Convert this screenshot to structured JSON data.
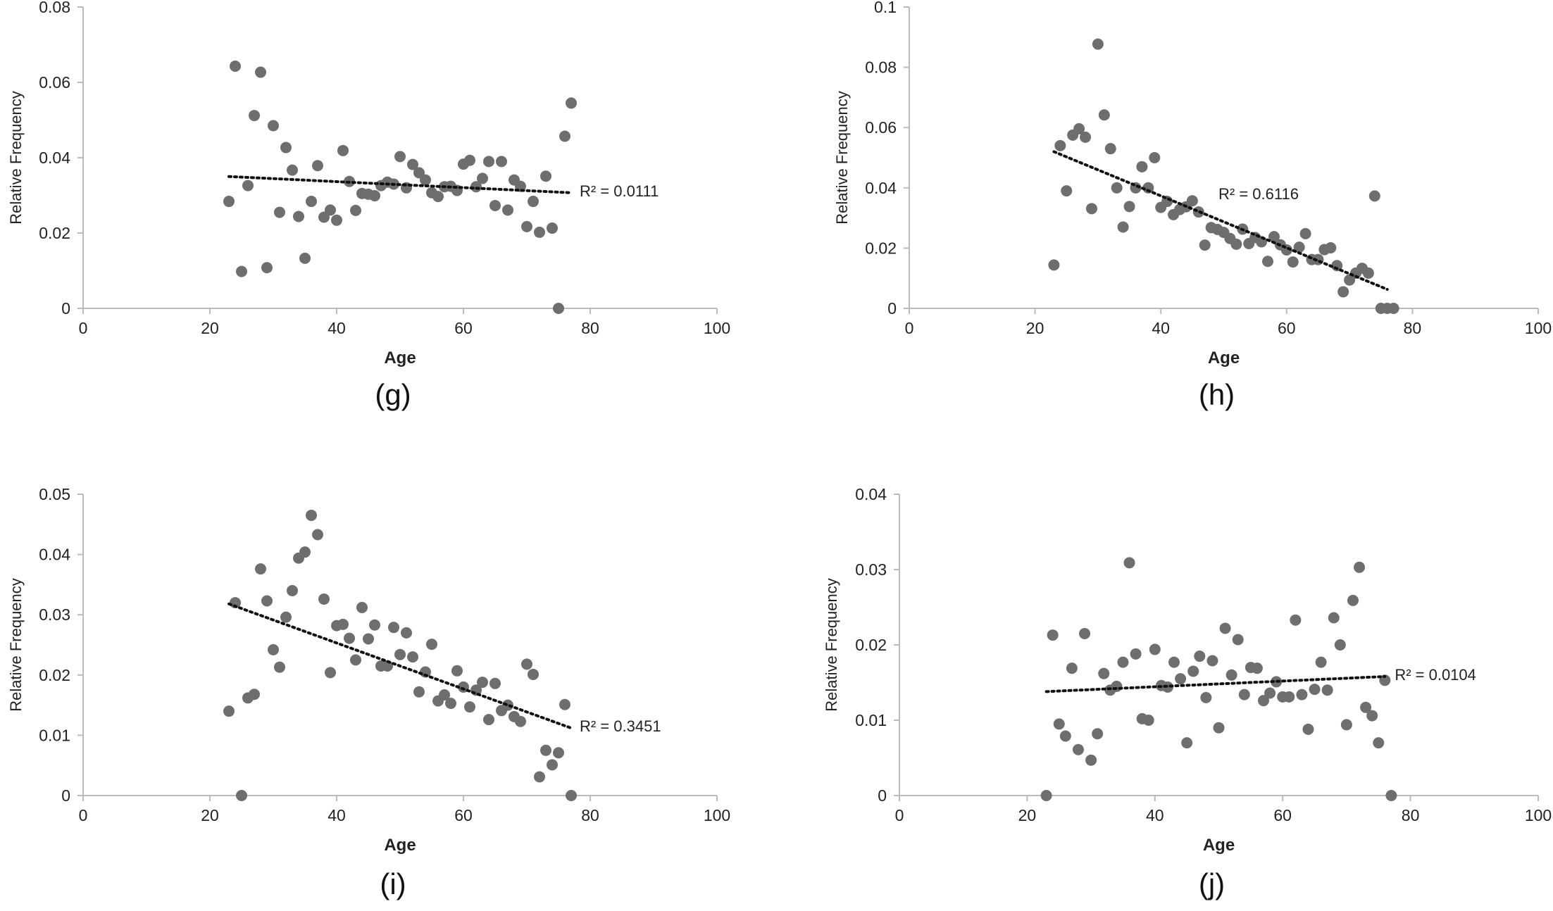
{
  "chart_data": [
    {
      "type": "scatter",
      "panel_label": "(g)",
      "xlabel": "Age",
      "ylabel": "Relative Frequency",
      "xlim": [
        0,
        100
      ],
      "ylim": [
        0,
        0.08
      ],
      "x_ticks": [
        "0",
        "20",
        "40",
        "60",
        "80",
        "100"
      ],
      "y_ticks": [
        "0",
        "0.02",
        "0.04",
        "0.06",
        "0.08"
      ],
      "trendline": {
        "style": "dotted",
        "linear": true,
        "x_start": 23,
        "y_start": 0.035,
        "x_end": 77,
        "y_end": 0.0307
      },
      "annotation": "R² = 0.0111",
      "points": [
        [
          23,
          0.0284
        ],
        [
          24,
          0.0643
        ],
        [
          25,
          0.0098
        ],
        [
          26,
          0.0326
        ],
        [
          27,
          0.0512
        ],
        [
          28,
          0.0627
        ],
        [
          29,
          0.0108
        ],
        [
          30,
          0.0485
        ],
        [
          31,
          0.0255
        ],
        [
          32,
          0.0427
        ],
        [
          33,
          0.0367
        ],
        [
          34,
          0.0244
        ],
        [
          35,
          0.0133
        ],
        [
          36,
          0.0284
        ],
        [
          37,
          0.0379
        ],
        [
          38,
          0.0242
        ],
        [
          39,
          0.0261
        ],
        [
          40,
          0.0234
        ],
        [
          41,
          0.0419
        ],
        [
          42,
          0.0337
        ],
        [
          43,
          0.026
        ],
        [
          44,
          0.0305
        ],
        [
          45,
          0.0303
        ],
        [
          46,
          0.0299
        ],
        [
          47,
          0.0326
        ],
        [
          48,
          0.0335
        ],
        [
          49,
          0.033
        ],
        [
          50,
          0.0403
        ],
        [
          51,
          0.032
        ],
        [
          52,
          0.0382
        ],
        [
          53,
          0.036
        ],
        [
          54,
          0.0341
        ],
        [
          55,
          0.0307
        ],
        [
          56,
          0.0297
        ],
        [
          57,
          0.0323
        ],
        [
          58,
          0.0324
        ],
        [
          59,
          0.0313
        ],
        [
          60,
          0.0383
        ],
        [
          61,
          0.0393
        ],
        [
          62,
          0.0323
        ],
        [
          63,
          0.0345
        ],
        [
          64,
          0.039
        ],
        [
          65,
          0.0273
        ],
        [
          66,
          0.039
        ],
        [
          67,
          0.0261
        ],
        [
          68,
          0.0341
        ],
        [
          69,
          0.0324
        ],
        [
          70,
          0.0217
        ],
        [
          71,
          0.0284
        ],
        [
          72,
          0.0202
        ],
        [
          73,
          0.0351
        ],
        [
          74,
          0.0213
        ],
        [
          75,
          0.0
        ],
        [
          76,
          0.0457
        ],
        [
          77,
          0.0545
        ]
      ]
    },
    {
      "type": "scatter",
      "panel_label": "(h)",
      "xlabel": "Age",
      "ylabel": "Relative Frequency",
      "xlim": [
        0,
        100
      ],
      "ylim": [
        0,
        0.1
      ],
      "x_ticks": [
        "0",
        "20",
        "40",
        "60",
        "80",
        "100"
      ],
      "y_ticks": [
        "0",
        "0.02",
        "0.04",
        "0.06",
        "0.08",
        "0.1"
      ],
      "trendline": {
        "style": "dotted",
        "linear": true,
        "x_start": 23,
        "y_start": 0.052,
        "x_end": 76,
        "y_end": 0.0063
      },
      "annotation": "R² = 0.6116",
      "points": [
        [
          23,
          0.0144
        ],
        [
          24,
          0.054
        ],
        [
          25,
          0.039
        ],
        [
          26,
          0.0575
        ],
        [
          27,
          0.0596
        ],
        [
          28,
          0.0568
        ],
        [
          29,
          0.0331
        ],
        [
          30,
          0.0877
        ],
        [
          31,
          0.0642
        ],
        [
          32,
          0.053
        ],
        [
          33,
          0.04
        ],
        [
          34,
          0.027
        ],
        [
          35,
          0.0338
        ],
        [
          36,
          0.04
        ],
        [
          37,
          0.047
        ],
        [
          38,
          0.04
        ],
        [
          39,
          0.05
        ],
        [
          40,
          0.0335
        ],
        [
          41,
          0.0355
        ],
        [
          42,
          0.0311
        ],
        [
          43,
          0.0328
        ],
        [
          44,
          0.0337
        ],
        [
          45,
          0.0357
        ],
        [
          46,
          0.032
        ],
        [
          47,
          0.021
        ],
        [
          48,
          0.0268
        ],
        [
          49,
          0.0262
        ],
        [
          50,
          0.0252
        ],
        [
          51,
          0.0232
        ],
        [
          52,
          0.0213
        ],
        [
          53,
          0.0263
        ],
        [
          54,
          0.0215
        ],
        [
          55,
          0.0235
        ],
        [
          56,
          0.0221
        ],
        [
          57,
          0.0156
        ],
        [
          58,
          0.0238
        ],
        [
          59,
          0.0211
        ],
        [
          60,
          0.0194
        ],
        [
          61,
          0.0154
        ],
        [
          62,
          0.0203
        ],
        [
          63,
          0.0248
        ],
        [
          64,
          0.0162
        ],
        [
          65,
          0.0162
        ],
        [
          66,
          0.0195
        ],
        [
          67,
          0.0201
        ],
        [
          68,
          0.0142
        ],
        [
          69,
          0.0055
        ],
        [
          70,
          0.0094
        ],
        [
          71,
          0.0117
        ],
        [
          72,
          0.0133
        ],
        [
          73,
          0.0117
        ],
        [
          74,
          0.0373
        ],
        [
          75,
          0.0
        ],
        [
          76,
          0.0
        ],
        [
          77,
          0.0
        ]
      ]
    },
    {
      "type": "scatter",
      "panel_label": "(i)",
      "xlabel": "Age",
      "ylabel": "Relative Frequency",
      "xlim": [
        0,
        100
      ],
      "ylim": [
        0,
        0.05
      ],
      "x_ticks": [
        "0",
        "20",
        "40",
        "60",
        "80",
        "100"
      ],
      "y_ticks": [
        "0",
        "0.01",
        "0.02",
        "0.03",
        "0.04",
        "0.05"
      ],
      "trendline": {
        "style": "dotted",
        "linear": true,
        "x_start": 23,
        "y_start": 0.0318,
        "x_end": 77,
        "y_end": 0.0112
      },
      "annotation": "R² = 0.3451",
      "points": [
        [
          23,
          0.014
        ],
        [
          24,
          0.032
        ],
        [
          25,
          0.0
        ],
        [
          26,
          0.0162
        ],
        [
          27,
          0.0168
        ],
        [
          28,
          0.0376
        ],
        [
          29,
          0.0323
        ],
        [
          30,
          0.0242
        ],
        [
          31,
          0.0213
        ],
        [
          32,
          0.0296
        ],
        [
          33,
          0.034
        ],
        [
          34,
          0.0394
        ],
        [
          35,
          0.0404
        ],
        [
          36,
          0.0465
        ],
        [
          37,
          0.0433
        ],
        [
          38,
          0.0326
        ],
        [
          39,
          0.0204
        ],
        [
          40,
          0.0282
        ],
        [
          41,
          0.0284
        ],
        [
          42,
          0.0261
        ],
        [
          43,
          0.0225
        ],
        [
          44,
          0.0312
        ],
        [
          45,
          0.026
        ],
        [
          46,
          0.0283
        ],
        [
          47,
          0.0215
        ],
        [
          48,
          0.0215
        ],
        [
          49,
          0.0279
        ],
        [
          50,
          0.0234
        ],
        [
          51,
          0.027
        ],
        [
          52,
          0.023
        ],
        [
          53,
          0.0172
        ],
        [
          54,
          0.0205
        ],
        [
          55,
          0.0251
        ],
        [
          56,
          0.0157
        ],
        [
          57,
          0.0167
        ],
        [
          58,
          0.0153
        ],
        [
          59,
          0.0207
        ],
        [
          60,
          0.018
        ],
        [
          61,
          0.0147
        ],
        [
          62,
          0.0175
        ],
        [
          63,
          0.0188
        ],
        [
          64,
          0.0126
        ],
        [
          65,
          0.0186
        ],
        [
          66,
          0.0141
        ],
        [
          67,
          0.015
        ],
        [
          68,
          0.0131
        ],
        [
          69,
          0.0123
        ],
        [
          70,
          0.0218
        ],
        [
          71,
          0.0201
        ],
        [
          72,
          0.0031
        ],
        [
          73,
          0.0075
        ],
        [
          74,
          0.0051
        ],
        [
          75,
          0.0071
        ],
        [
          76,
          0.0151
        ],
        [
          77,
          0.0
        ]
      ]
    },
    {
      "type": "scatter",
      "panel_label": "(j)",
      "xlabel": "Age",
      "ylabel": "Relative Frequency",
      "xlim": [
        0,
        100
      ],
      "ylim": [
        0,
        0.04
      ],
      "x_ticks": [
        "0",
        "20",
        "40",
        "60",
        "80",
        "100"
      ],
      "y_ticks": [
        "0",
        "0.01",
        "0.02",
        "0.03",
        "0.04"
      ],
      "trendline": {
        "style": "dotted",
        "linear": true,
        "x_start": 23,
        "y_start": 0.0138,
        "x_end": 76,
        "y_end": 0.0158
      },
      "annotation": "R² = 0.0104",
      "points": [
        [
          23,
          0.0
        ],
        [
          24,
          0.0213
        ],
        [
          25,
          0.0095
        ],
        [
          26,
          0.0079
        ],
        [
          27,
          0.0169
        ],
        [
          28,
          0.0061
        ],
        [
          29,
          0.0215
        ],
        [
          30,
          0.0047
        ],
        [
          31,
          0.0082
        ],
        [
          32,
          0.0162
        ],
        [
          33,
          0.014
        ],
        [
          34,
          0.0145
        ],
        [
          35,
          0.0177
        ],
        [
          36,
          0.0309
        ],
        [
          37,
          0.0188
        ],
        [
          38,
          0.0102
        ],
        [
          39,
          0.01
        ],
        [
          40,
          0.0194
        ],
        [
          41,
          0.0146
        ],
        [
          42,
          0.0144
        ],
        [
          43,
          0.0177
        ],
        [
          44,
          0.0155
        ],
        [
          45,
          0.007
        ],
        [
          46,
          0.0165
        ],
        [
          47,
          0.0185
        ],
        [
          48,
          0.013
        ],
        [
          49,
          0.0179
        ],
        [
          50,
          0.009
        ],
        [
          51,
          0.0222
        ],
        [
          52,
          0.016
        ],
        [
          53,
          0.0207
        ],
        [
          54,
          0.0134
        ],
        [
          55,
          0.017
        ],
        [
          56,
          0.0169
        ],
        [
          57,
          0.0126
        ],
        [
          58,
          0.0136
        ],
        [
          59,
          0.0151
        ],
        [
          60,
          0.0131
        ],
        [
          61,
          0.0131
        ],
        [
          62,
          0.0233
        ],
        [
          63,
          0.0134
        ],
        [
          64,
          0.0088
        ],
        [
          65,
          0.0141
        ],
        [
          66,
          0.0177
        ],
        [
          67,
          0.014
        ],
        [
          68,
          0.0236
        ],
        [
          69,
          0.02
        ],
        [
          70,
          0.0094
        ],
        [
          71,
          0.0259
        ],
        [
          72,
          0.0303
        ],
        [
          73,
          0.0117
        ],
        [
          74,
          0.0106
        ],
        [
          75,
          0.007
        ],
        [
          76,
          0.0153
        ],
        [
          77,
          0.0
        ]
      ]
    }
  ]
}
